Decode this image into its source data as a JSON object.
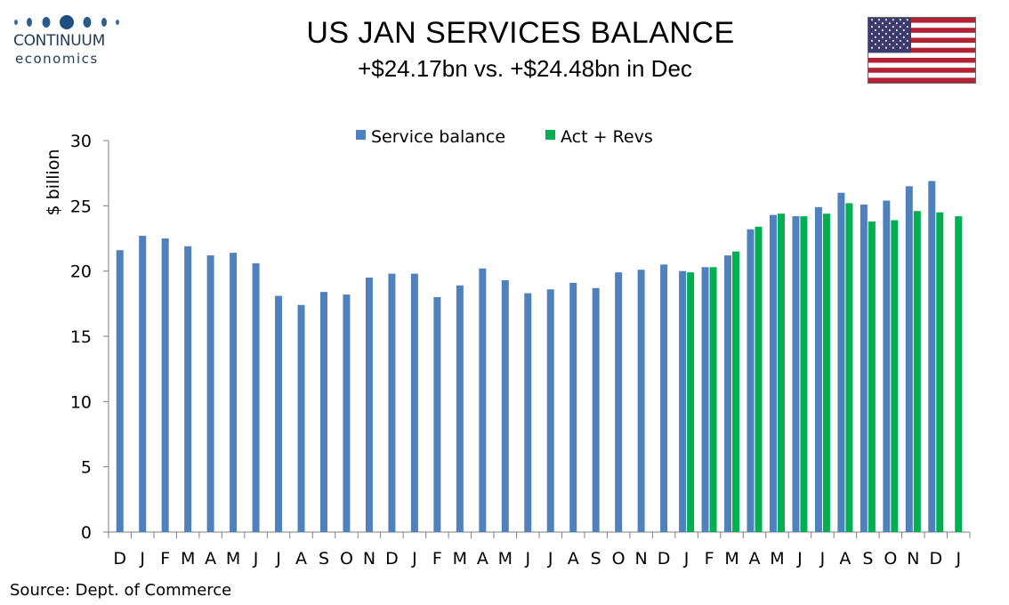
{
  "header": {
    "title": "US JAN SERVICES BALANCE",
    "subtitle": "+$24.17bn vs. +$24.48bn in Dec",
    "logo_line1": "CONTINUUM",
    "logo_line2": "economics"
  },
  "footer": {
    "source": "Source: Dept. of Commerce"
  },
  "colors": {
    "series1": "#4F81BD",
    "series2": "#00B050",
    "axis": "#7f7f7f"
  },
  "chart_data": {
    "type": "bar",
    "title": "",
    "xlabel": "",
    "ylabel": "$ billion",
    "ylim": [
      0,
      30
    ],
    "yticks": [
      0,
      5,
      10,
      15,
      20,
      25,
      30
    ],
    "legend_position": "top",
    "categories": [
      "D",
      "J",
      "F",
      "M",
      "A",
      "M",
      "J",
      "J",
      "A",
      "S",
      "O",
      "N",
      "D",
      "J",
      "F",
      "M",
      "A",
      "M",
      "J",
      "J",
      "A",
      "S",
      "O",
      "N",
      "D",
      "J",
      "F",
      "M",
      "A",
      "M",
      "J",
      "J",
      "A",
      "S",
      "O",
      "N",
      "D",
      "J"
    ],
    "series": [
      {
        "name": "Service balance",
        "color": "#4F81BD",
        "values": [
          21.6,
          22.7,
          22.5,
          21.9,
          21.2,
          21.4,
          20.6,
          18.1,
          17.4,
          18.4,
          18.2,
          19.5,
          19.8,
          19.8,
          18.0,
          18.9,
          20.2,
          19.3,
          18.3,
          18.6,
          19.1,
          18.7,
          19.9,
          20.1,
          20.5,
          20.0,
          20.3,
          21.2,
          23.2,
          24.3,
          24.2,
          24.9,
          26.0,
          25.1,
          25.4,
          26.5,
          26.9,
          null
        ]
      },
      {
        "name": "Act + Revs",
        "color": "#00B050",
        "values": [
          null,
          null,
          null,
          null,
          null,
          null,
          null,
          null,
          null,
          null,
          null,
          null,
          null,
          null,
          null,
          null,
          null,
          null,
          null,
          null,
          null,
          null,
          null,
          null,
          null,
          19.9,
          20.3,
          21.5,
          23.4,
          24.4,
          24.2,
          24.4,
          25.2,
          23.8,
          23.9,
          24.6,
          24.5,
          24.2
        ]
      }
    ]
  }
}
